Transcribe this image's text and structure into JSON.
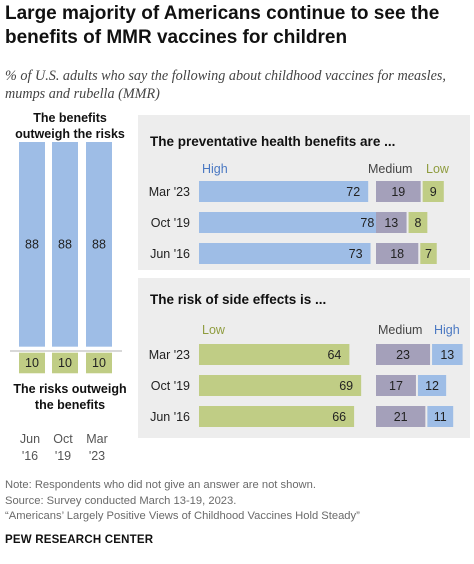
{
  "title": "Large majority of Americans continue to see the benefits of MMR vaccines for children",
  "subtitle": "% of U.S. adults who say the following about childhood vaccines for measles, mumps and rubella (MMR)",
  "chart_data": [
    {
      "type": "bar",
      "orientation": "vertical-stacked",
      "categories": [
        "Jun '16",
        "Oct '19",
        "Mar '23"
      ],
      "series": [
        {
          "name": "The benefits outweigh the risks",
          "values": [
            88,
            88,
            88
          ]
        },
        {
          "name": "The risks outweigh the benefits",
          "values": [
            10,
            10,
            10
          ]
        }
      ],
      "labels": {
        "top": "The benefits outweigh the risks",
        "bottom": "The risks outweigh the benefits",
        "ticks": [
          [
            "Jun",
            "'16"
          ],
          [
            "Oct",
            "'19"
          ],
          [
            "Mar",
            "'23"
          ]
        ]
      }
    },
    {
      "type": "bar",
      "orientation": "horizontal",
      "title": "The preventative health benefits are ...",
      "categories": [
        "Mar '23",
        "Oct '19",
        "Jun '16"
      ],
      "series": [
        {
          "name": "High",
          "values": [
            72,
            78,
            73
          ]
        },
        {
          "name": "Medium",
          "values": [
            19,
            13,
            18
          ]
        },
        {
          "name": "Low",
          "values": [
            9,
            8,
            7
          ]
        }
      ]
    },
    {
      "type": "bar",
      "orientation": "horizontal",
      "title": "The risk of side effects is ...",
      "categories": [
        "Mar '23",
        "Oct '19",
        "Jun '16"
      ],
      "series": [
        {
          "name": "Low",
          "values": [
            64,
            69,
            66
          ]
        },
        {
          "name": "Medium",
          "values": [
            23,
            17,
            21
          ]
        },
        {
          "name": "High",
          "values": [
            13,
            12,
            11
          ]
        }
      ]
    }
  ],
  "colors": {
    "blue": "#9ebde6",
    "blue_text": "#4a78c2",
    "green": "#c0cd85",
    "green_text": "#8f9c3f",
    "purple": "#a4a0ba",
    "panel_bg": "#ededed"
  },
  "notes": [
    "Note: Respondents who did not give an answer are not shown.",
    "Source: Survey conducted March 13-19, 2023.",
    "“Americans’ Largely Positive Views of Childhood Vaccines Hold Steady”"
  ],
  "brand": "PEW RESEARCH CENTER"
}
